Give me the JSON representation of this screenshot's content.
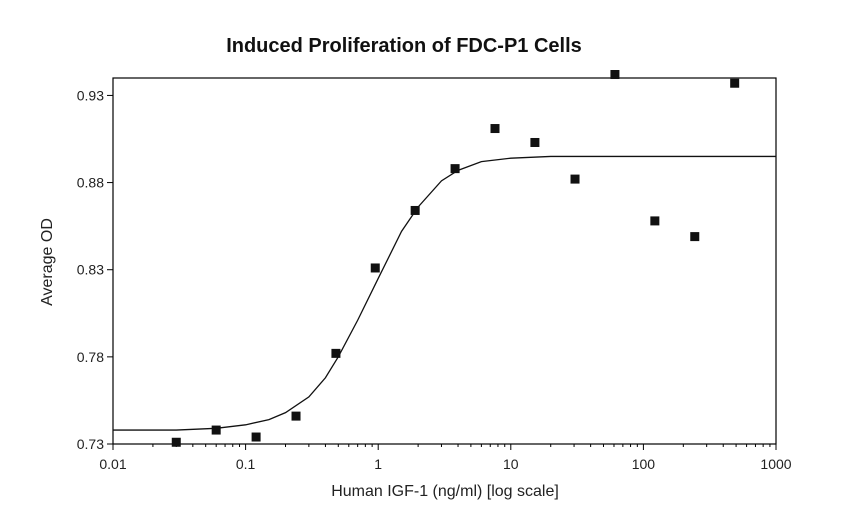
{
  "chart_data": {
    "type": "scatter",
    "title": "Induced Proliferation of FDC-P1 Cells",
    "xlabel": "Human IGF-1 (ng/ml) [log scale]",
    "ylabel": "Average OD",
    "x_scale": "log",
    "xlim": [
      0.01,
      1000
    ],
    "ylim": [
      0.73,
      0.94
    ],
    "x_ticks": [
      0.01,
      0.1,
      1,
      10,
      100,
      1000
    ],
    "x_tick_labels": [
      "0.01",
      "0.1",
      "1",
      "10",
      "100",
      "1000"
    ],
    "y_ticks": [
      0.73,
      0.78,
      0.83,
      0.88,
      0.93
    ],
    "y_tick_labels": [
      "0.73",
      "0.78",
      "0.83",
      "0.88",
      "0.93"
    ],
    "grid": false,
    "series": [
      {
        "type": "scatter",
        "marker": "square",
        "color": "#111111",
        "x": [
          0.03,
          0.06,
          0.12,
          0.24,
          0.48,
          0.95,
          1.9,
          3.8,
          7.6,
          15.2,
          30.5,
          61,
          122,
          244,
          488
        ],
        "y": [
          0.731,
          0.738,
          0.734,
          0.746,
          0.782,
          0.831,
          0.864,
          0.888,
          0.911,
          0.903,
          0.882,
          0.942,
          0.858,
          0.849,
          0.937
        ]
      },
      {
        "type": "line",
        "style": "fitted-curve",
        "color": "#111111",
        "x": [
          0.01,
          0.03,
          0.06,
          0.1,
          0.15,
          0.2,
          0.3,
          0.4,
          0.5,
          0.7,
          1,
          1.5,
          2,
          3,
          4,
          6,
          10,
          20,
          50,
          100,
          300,
          1000
        ],
        "y": [
          0.738,
          0.738,
          0.739,
          0.741,
          0.744,
          0.748,
          0.757,
          0.768,
          0.78,
          0.801,
          0.825,
          0.852,
          0.866,
          0.881,
          0.887,
          0.892,
          0.894,
          0.895,
          0.895,
          0.895,
          0.895,
          0.895
        ]
      }
    ]
  }
}
